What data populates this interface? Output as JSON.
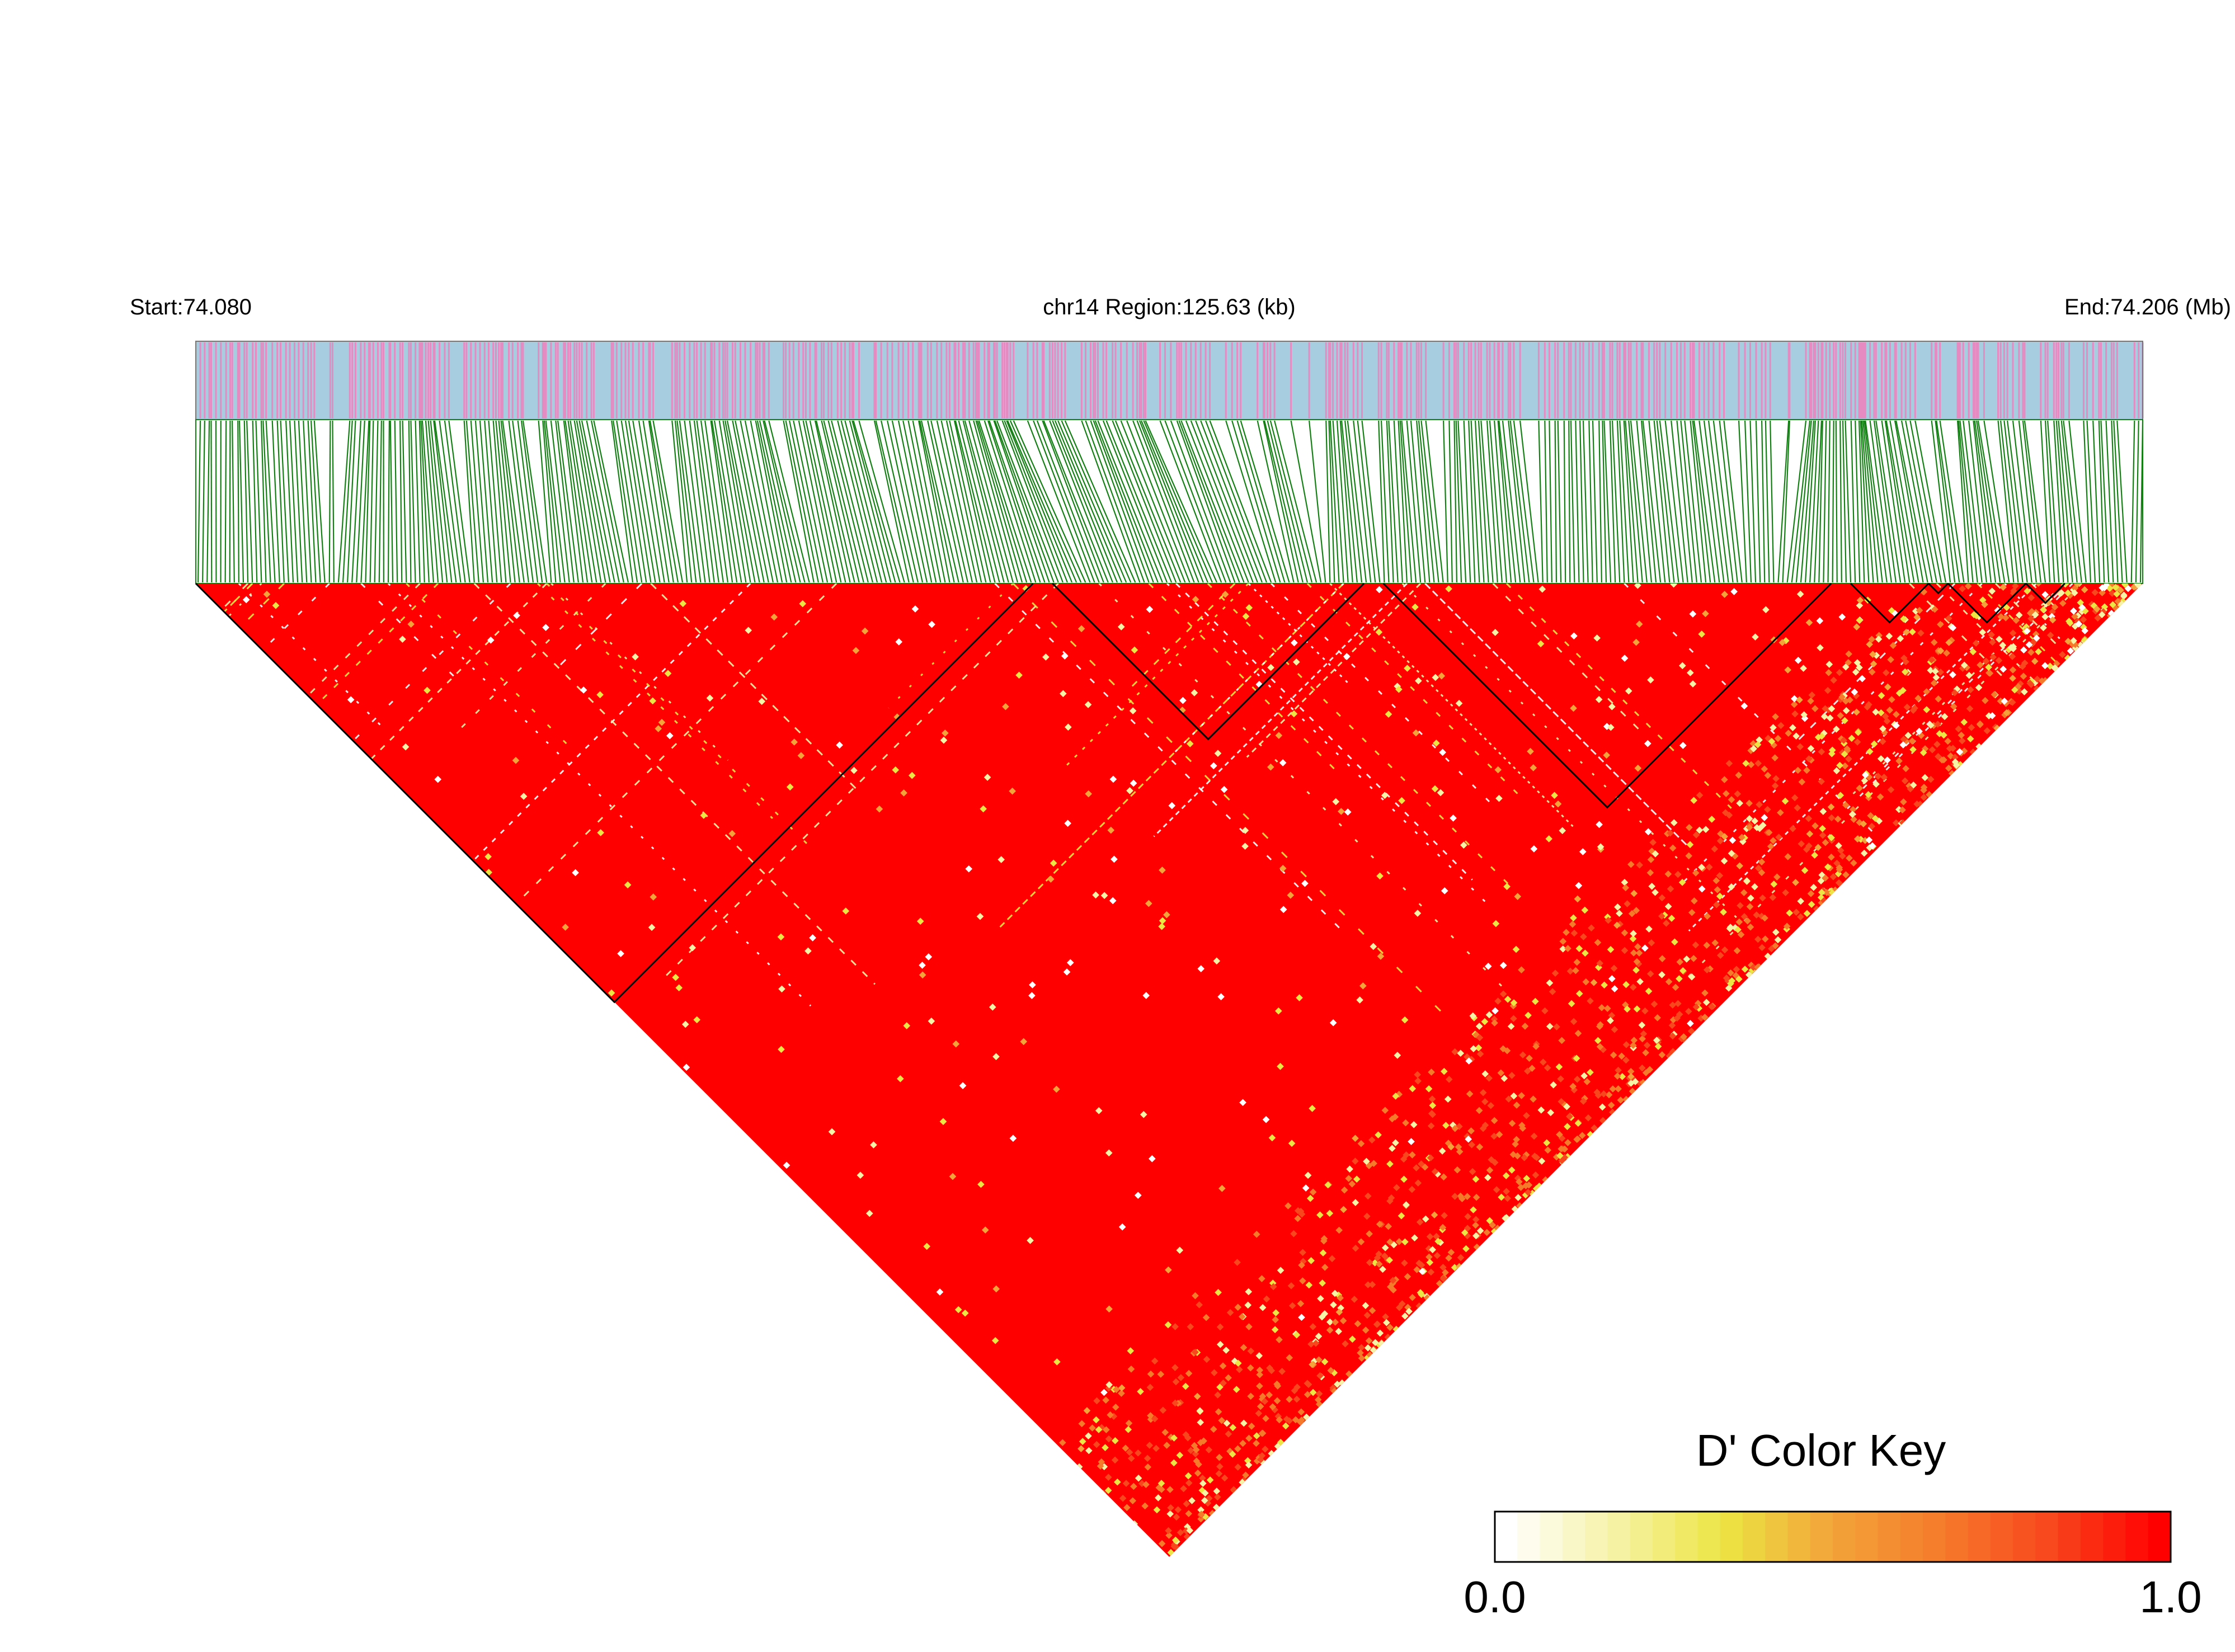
{
  "chart_data": {
    "type": "heatmap",
    "subtype": "linkage-disequilibrium-triangle",
    "header": {
      "start_label": "Start:74.080",
      "region_label": "chr14 Region:125.63 (kb)",
      "end_label": "End:74.206 (Mb)"
    },
    "region": {
      "chromosome": "chr14",
      "start_mb": 74.08,
      "end_mb": 74.206,
      "length_kb": 125.63,
      "snp_count_approx": 430
    },
    "ld_blocks_approx": [
      {
        "from_snp_fraction": 0.0,
        "to_snp_fraction": 0.43
      },
      {
        "from_snp_fraction": 0.44,
        "to_snp_fraction": 0.6
      },
      {
        "from_snp_fraction": 0.61,
        "to_snp_fraction": 0.84
      },
      {
        "from_snp_fraction": 0.85,
        "to_snp_fraction": 0.89
      },
      {
        "from_snp_fraction": 0.89,
        "to_snp_fraction": 0.9
      },
      {
        "from_snp_fraction": 0.9,
        "to_snp_fraction": 0.94
      },
      {
        "from_snp_fraction": 0.94,
        "to_snp_fraction": 0.96
      }
    ],
    "value_range": [
      0.0,
      1.0
    ],
    "dominant_value": 1.0,
    "color_key": {
      "title": "D' Color Key",
      "min_label": "0.0",
      "max_label": "1.0",
      "colors": [
        "#ffffff",
        "#f6f2a6",
        "#ece544",
        "#f3a33a",
        "#f57b2b",
        "#f8461d",
        "#ff0000"
      ]
    },
    "colors": {
      "snp_track_bg": "#a7cde0",
      "snp_marker": "#e58bc2",
      "connector": "#138013",
      "ld_high": "#ff0000"
    }
  }
}
